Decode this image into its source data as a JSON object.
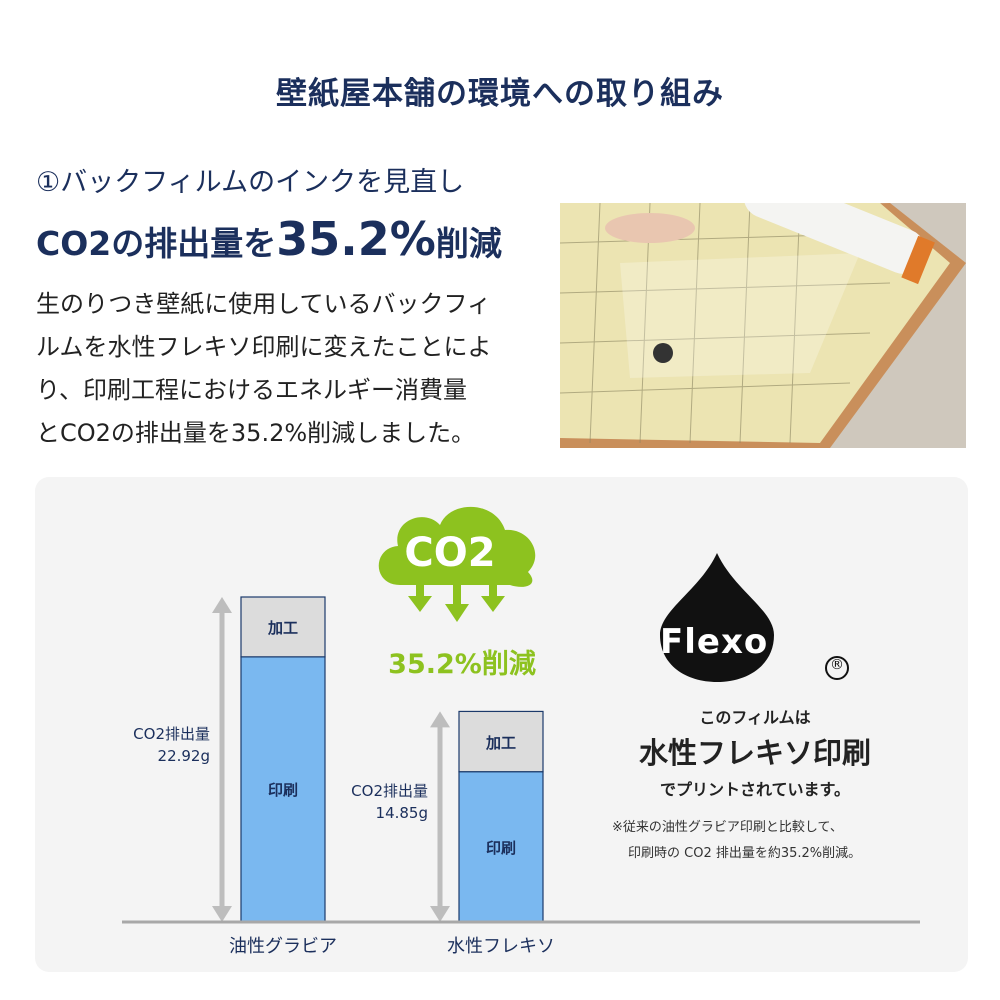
{
  "title": "壁紙屋本舗の環境への取り組み",
  "section": {
    "heading": "①バックフィルムのインクを見直し",
    "headline_prefix": "CO2の排出量を",
    "headline_value": "35.2%",
    "headline_suffix": "削減",
    "body_lines": [
      "生のりつき壁紙に使用しているバックフィ",
      "ルムを水性フレキソ印刷に変えたことによ",
      "り、印刷工程におけるエネルギー消費量",
      "とCO2の排出量を35.2%削減しました。"
    ]
  },
  "cloud": {
    "text": "CO2",
    "reduction": "35.2%削減",
    "color": "#8dc21f"
  },
  "flexo": {
    "logo_text": "Flexo",
    "registered": "®",
    "line1": "このフィルムは",
    "line2": "水性フレキソ印刷",
    "line3": "でプリントされています。",
    "note1": "※従来の油性グラビア印刷と比較して、",
    "note2": "印刷時の CO2 排出量を約35.2%削減。"
  },
  "chart_data": {
    "type": "bar",
    "stacked": true,
    "categories": [
      "油性グラビア",
      "水性フレキソ"
    ],
    "series": [
      {
        "name": "印刷",
        "values": [
          18.7,
          10.6
        ],
        "color": "#7ab8f0"
      },
      {
        "name": "加工",
        "values": [
          4.22,
          4.25
        ],
        "color": "#dcdcdc"
      }
    ],
    "totals": [
      22.92,
      14.85
    ],
    "total_labels": [
      {
        "line1": "CO2排出量",
        "line2": "22.92g"
      },
      {
        "line1": "CO2排出量",
        "line2": "14.85g"
      }
    ],
    "ylim": [
      0,
      22.92
    ],
    "grid": false
  }
}
